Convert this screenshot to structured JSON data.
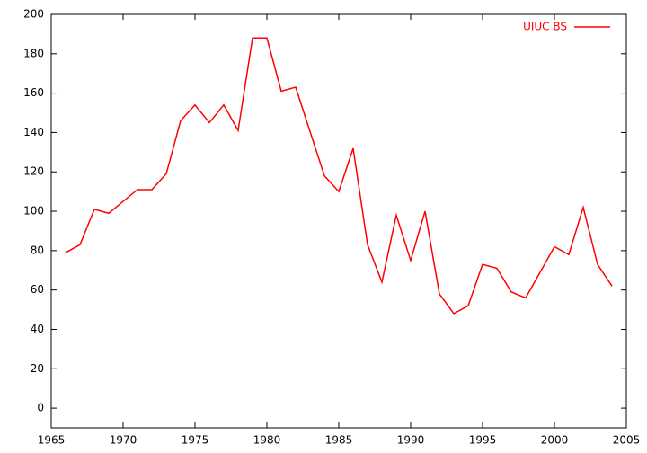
{
  "chart_data": {
    "type": "line",
    "x": [
      1966,
      1967,
      1968,
      1969,
      1971,
      1972,
      1973,
      1974,
      1975,
      1976,
      1977,
      1978,
      1979,
      1980,
      1981,
      1982,
      1984,
      1985,
      1986,
      1987,
      1988,
      1989,
      1990,
      1991,
      1992,
      1993,
      1994,
      1995,
      1996,
      1997,
      1998,
      2000,
      2001,
      2002,
      2003,
      2004
    ],
    "series": [
      {
        "name": "UIUC BS",
        "color": "#ff0000",
        "values": [
          79,
          83,
          101,
          99,
          111,
          111,
          119,
          146,
          154,
          145,
          154,
          141,
          188,
          188,
          161,
          163,
          118,
          110,
          132,
          83,
          64,
          98,
          75,
          100,
          58,
          48,
          52,
          73,
          71,
          59,
          56,
          82,
          78,
          102,
          73,
          62
        ]
      }
    ],
    "xlim": [
      1965,
      2005
    ],
    "xticks": [
      1965,
      1970,
      1975,
      1980,
      1985,
      1990,
      1995,
      2000,
      2005
    ],
    "ylim": [
      -10,
      200
    ],
    "yticks": [
      0,
      20,
      40,
      60,
      80,
      100,
      120,
      140,
      160,
      180,
      200
    ],
    "legend": "top-right"
  }
}
